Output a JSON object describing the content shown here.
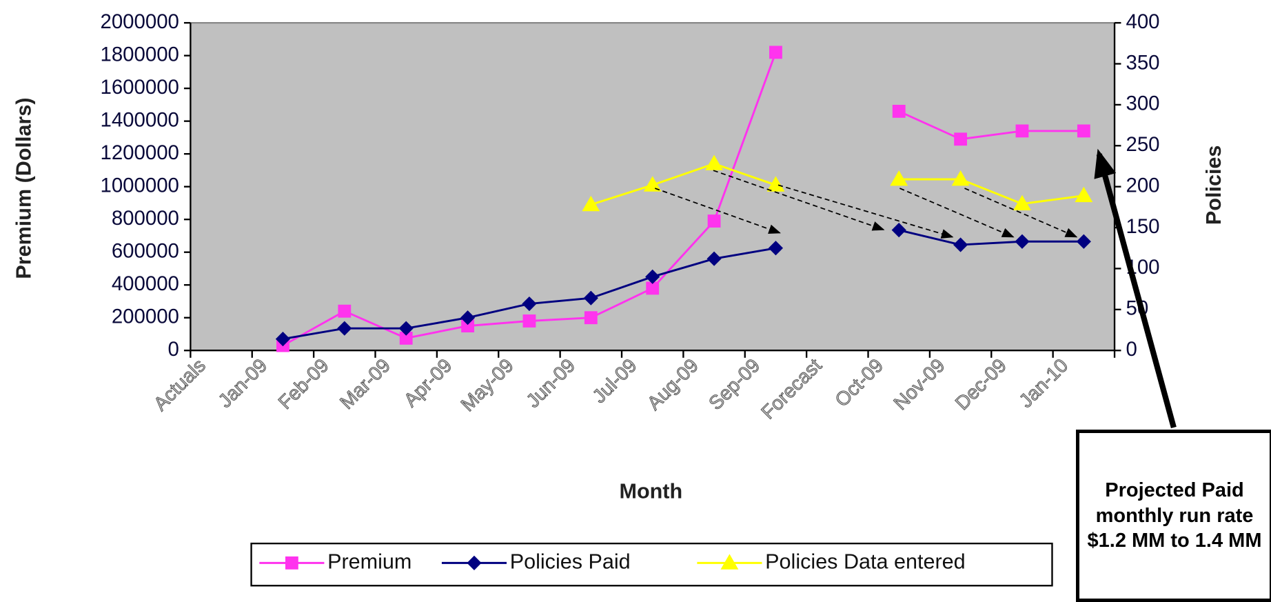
{
  "chart_data": {
    "type": "line",
    "categories": [
      "Actuals",
      "Jan-09",
      "Feb-09",
      "Mar-09",
      "Apr-09",
      "May-09",
      "Jun-09",
      "Jul-09",
      "Aug-09",
      "Sep-09",
      "Forecast",
      "Oct-09",
      "Nov-09",
      "Dec-09",
      "Jan-10"
    ],
    "series": [
      {
        "name": "Premium",
        "color": "#ff33ee",
        "marker": "square",
        "axis": "y",
        "values": [
          null,
          30000,
          240000,
          75000,
          150000,
          180000,
          200000,
          380000,
          790000,
          1820000,
          null,
          1460000,
          1290000,
          1340000,
          1340000
        ]
      },
      {
        "name": "Policies Paid",
        "color": "#000080",
        "marker": "diamond",
        "axis": "y2",
        "values": [
          null,
          14,
          27,
          27,
          40,
          57,
          64,
          90,
          112,
          125,
          null,
          147,
          129,
          133,
          133
        ]
      },
      {
        "name": "Policies Data entered",
        "color": "#ffff00",
        "marker": "triangle",
        "axis": "y2",
        "values": [
          null,
          null,
          null,
          null,
          null,
          null,
          178,
          202,
          228,
          202,
          null,
          209,
          209,
          179,
          189
        ]
      }
    ],
    "xlabel": "Month",
    "ylabel": "Premium (Dollars)",
    "y2label": "Policies",
    "ylim": [
      0,
      2000000
    ],
    "yticks": [
      0,
      200000,
      400000,
      600000,
      800000,
      1000000,
      1200000,
      1400000,
      1600000,
      1800000,
      2000000
    ],
    "y2lim": [
      0,
      400
    ],
    "y2ticks": [
      0,
      50,
      100,
      150,
      200,
      250,
      300,
      350,
      400
    ],
    "grid": false,
    "legend": "bottom",
    "annotation": "Projected Paid monthly run rate $1.2 MM to 1.4 MM"
  }
}
